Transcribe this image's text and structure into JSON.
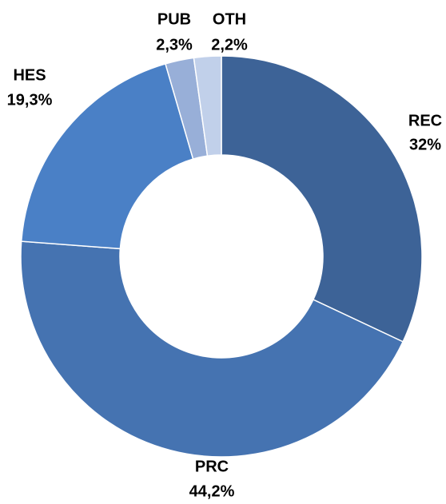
{
  "chart_data": {
    "type": "donut",
    "categories": [
      "REC",
      "PRC",
      "HES",
      "PUB",
      "OTH"
    ],
    "values": [
      32,
      44.2,
      19.3,
      2.3,
      2.2
    ],
    "value_labels": [
      "32%",
      "44,2%",
      "19,3%",
      "2,3%",
      "2,2%"
    ],
    "colors": [
      "#3d6397",
      "#4573b1",
      "#4a80c6",
      "#98afd8",
      "#c1d0ea"
    ]
  }
}
